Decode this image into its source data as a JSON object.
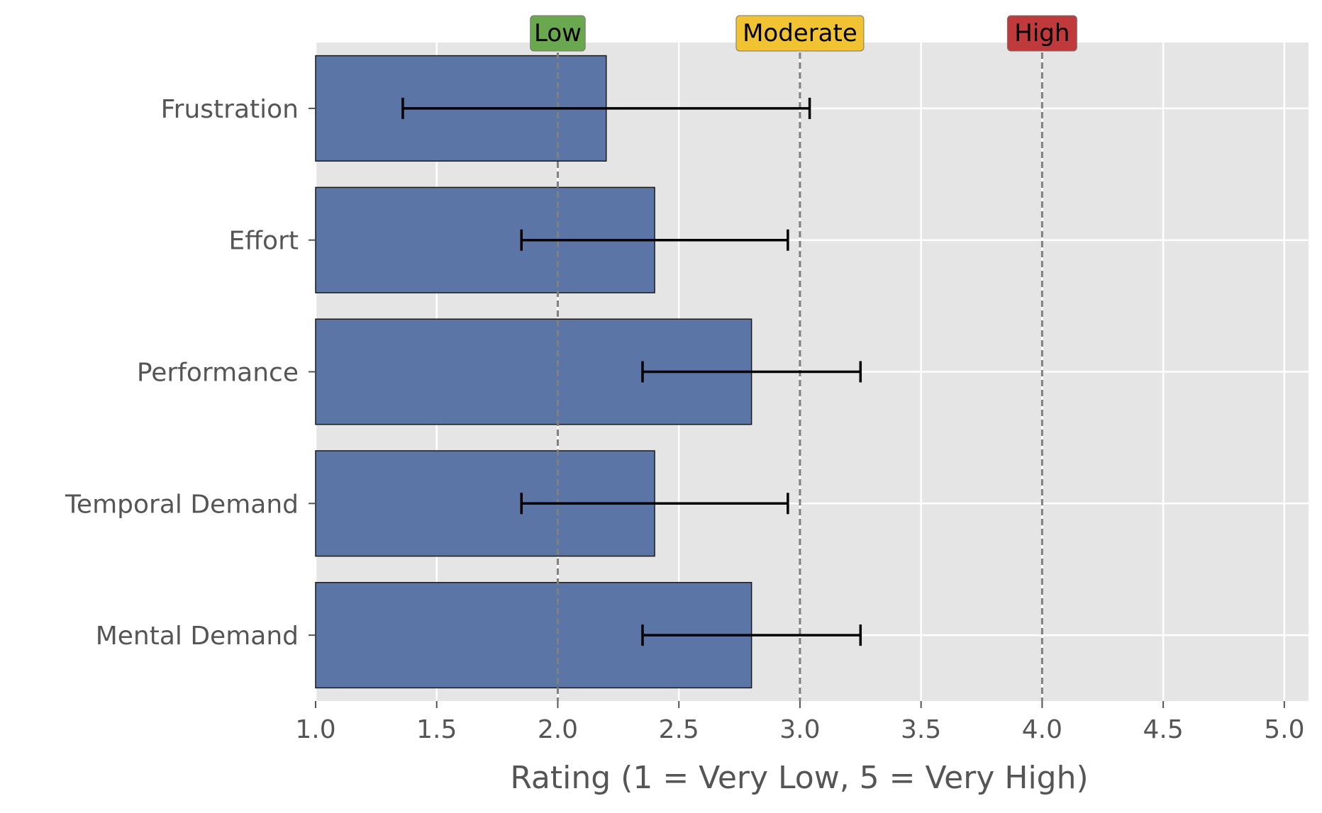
{
  "chart_data": {
    "type": "bar",
    "orientation": "horizontal",
    "categories": [
      "Mental Demand",
      "Temporal Demand",
      "Performance",
      "Effort",
      "Frustration"
    ],
    "values": [
      2.8,
      2.4,
      2.8,
      2.4,
      2.2
    ],
    "error_low": [
      2.35,
      1.85,
      2.35,
      1.85,
      1.36
    ],
    "error_high": [
      3.25,
      2.95,
      3.25,
      2.95,
      3.04
    ],
    "xlabel": "Rating (1 = Very Low, 5 = Very High)",
    "ylabel": "",
    "xlim": [
      1.0,
      5.1
    ],
    "xticks": [
      "1.0",
      "1.5",
      "2.0",
      "2.5",
      "3.0",
      "3.5",
      "4.0",
      "4.5",
      "5.0"
    ],
    "grid": true,
    "reference_lines": [
      {
        "value": 2.0,
        "label": "Low",
        "color": "#6aa84f"
      },
      {
        "value": 3.0,
        "label": "Moderate",
        "color": "#f1c232"
      },
      {
        "value": 4.0,
        "label": "High",
        "color": "#c0393b"
      }
    ],
    "colors": {
      "bar": "#5b76a6",
      "plot_background": "#e5e5e5",
      "grid": "#ffffff",
      "reference_line": "#808080",
      "error_bar": "#000000"
    }
  }
}
